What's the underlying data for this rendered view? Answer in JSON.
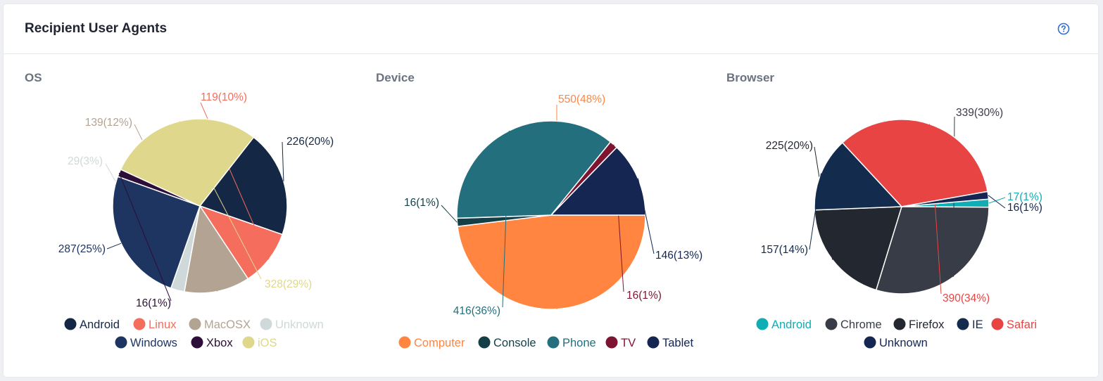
{
  "card": {
    "title": "Recipient User Agents",
    "help_icon": "question-circle-icon"
  },
  "chart_data": [
    {
      "type": "pie",
      "title": "OS",
      "slices": [
        {
          "name": "Android",
          "value": 226,
          "label": "226(20%)",
          "color": "#142744",
          "legend_color": "#142744"
        },
        {
          "name": "Linux",
          "value": 119,
          "label": "119(10%)",
          "color": "#f56d5d",
          "legend_color": "#f56d5d"
        },
        {
          "name": "MacOSX",
          "value": 139,
          "label": "139(12%)",
          "color": "#b3a393",
          "legend_color": "#b3a393"
        },
        {
          "name": "Unknown",
          "value": 29,
          "label": "29(3%)",
          "color": "#d0d9d9",
          "legend_color": "#d0d9d9"
        },
        {
          "name": "Windows",
          "value": 287,
          "label": "287(25%)",
          "color": "#1e3461",
          "legend_color": "#1e3461"
        },
        {
          "name": "Xbox",
          "value": 16,
          "label": "16(1%)",
          "color": "#2d0e39",
          "legend_color": "#2d0e39"
        },
        {
          "name": "iOS",
          "value": 328,
          "label": "328(29%)",
          "color": "#dfd78b",
          "legend_color": "#dfd78b"
        }
      ]
    },
    {
      "type": "pie",
      "title": "Device",
      "slices": [
        {
          "name": "Computer",
          "value": 550,
          "label": "550(48%)",
          "color": "#ff8540",
          "legend_color": "#ff8540"
        },
        {
          "name": "Console",
          "value": 16,
          "label": "16(1%)",
          "color": "#143f47",
          "legend_color": "#143f47"
        },
        {
          "name": "Phone",
          "value": 416,
          "label": "416(36%)",
          "color": "#236f7d",
          "legend_color": "#236f7d"
        },
        {
          "name": "TV",
          "value": 16,
          "label": "16(1%)",
          "color": "#7d1532",
          "legend_color": "#7d1532"
        },
        {
          "name": "Tablet",
          "value": 146,
          "label": "146(13%)",
          "color": "#142651",
          "legend_color": "#142651"
        }
      ]
    },
    {
      "type": "pie",
      "title": "Browser",
      "slices": [
        {
          "name": "Android",
          "value": 17,
          "label": "17(1%)",
          "color": "#10adb5",
          "legend_color": "#10adb5"
        },
        {
          "name": "Chrome",
          "value": 339,
          "label": "339(30%)",
          "color": "#383c46",
          "legend_color": "#383c46"
        },
        {
          "name": "Firefox",
          "value": 225,
          "label": "225(20%)",
          "color": "#222730",
          "legend_color": "#222730"
        },
        {
          "name": "IE",
          "value": 157,
          "label": "157(14%)",
          "color": "#132b4c",
          "legend_color": "#132b4c"
        },
        {
          "name": "Safari",
          "value": 390,
          "label": "390(34%)",
          "color": "#e84444",
          "legend_color": "#e84444"
        },
        {
          "name": "Unknown",
          "value": 16,
          "label": "16(1%)",
          "color": "#142651",
          "legend_color": "#142651"
        }
      ]
    }
  ]
}
